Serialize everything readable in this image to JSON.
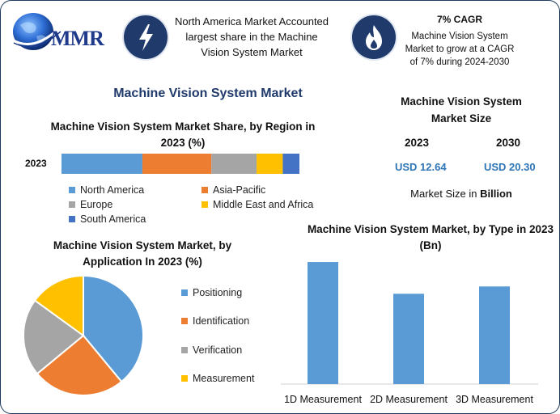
{
  "brand": {
    "logo_text": "MMR"
  },
  "header": {
    "region_note": "North America Market Accounted largest share in the Machine Vision System Market",
    "cagr_title": "7% CAGR",
    "cagr_note": "Machine Vision System Market to grow at a CAGR of 7% during 2024-2030",
    "icon_left": "lightning-icon",
    "icon_right": "flame-icon"
  },
  "main_title": "Machine Vision System Market",
  "market_size": {
    "title": "Machine Vision System Market Size",
    "years": [
      "2023",
      "2030"
    ],
    "values": [
      "USD 12.64",
      "USD 20.30"
    ],
    "unit_prefix": "Market Size in ",
    "unit_bold": "Billion"
  },
  "colors": {
    "blue": "#5b9bd5",
    "orange": "#ed7d31",
    "gray": "#a5a5a5",
    "yellow": "#ffc000",
    "dark_blue": "#4472c4",
    "navy": "#1f3a6b"
  },
  "chart_data": [
    {
      "type": "bar",
      "stacked": true,
      "orientation": "horizontal",
      "title": "Machine Vision System Market Share, by Region in 2023 (%)",
      "categories": [
        "2023"
      ],
      "series": [
        {
          "name": "North America",
          "values": [
            34
          ],
          "color": "#5b9bd5"
        },
        {
          "name": "Asia-Pacific",
          "values": [
            29
          ],
          "color": "#ed7d31"
        },
        {
          "name": "Europe",
          "values": [
            19
          ],
          "color": "#a5a5a5"
        },
        {
          "name": "Middle East and Africa",
          "values": [
            11
          ],
          "color": "#ffc000"
        },
        {
          "name": "South America",
          "values": [
            7
          ],
          "color": "#4472c4"
        }
      ],
      "legend": "bottom",
      "grid": false
    },
    {
      "type": "pie",
      "title": "Machine Vision System Market, by Application In 2023 (%)",
      "labels": [
        "Positioning",
        "Identification",
        "Verification",
        "Measurement"
      ],
      "values": [
        39,
        25,
        21,
        15
      ],
      "colors": [
        "#5b9bd5",
        "#ed7d31",
        "#a5a5a5",
        "#ffc000"
      ],
      "legend": "right"
    },
    {
      "type": "bar",
      "title": "Machine Vision System Market, by Type in 2023 (Bn)",
      "categories": [
        "1D Measurement",
        "2D Measurement",
        "3D Measurement"
      ],
      "values": [
        5.0,
        3.7,
        4.0
      ],
      "ylim": [
        0,
        5.3
      ],
      "color": "#5b9bd5",
      "grid": false
    }
  ]
}
